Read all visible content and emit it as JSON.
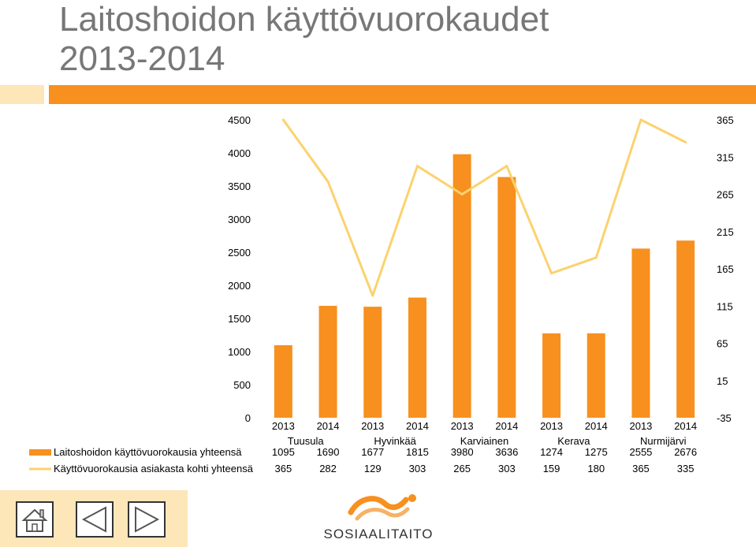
{
  "page": {
    "title_line1": "Laitoshoidon käyttövuorokaudet",
    "title_line2": "2013-2014",
    "accent_color": "#f7901e",
    "accent_light": "#fde6b8",
    "line_color": "#fcd26e"
  },
  "chart_data": {
    "type": "bar",
    "title": "Laitoshoidon käyttövuorokaudet 2013-2014",
    "groups": [
      "Tuusula",
      "Hyvinkää",
      "Karviainen",
      "Kerava",
      "Nurmijärvi"
    ],
    "years": [
      "2013",
      "2014",
      "2013",
      "2014",
      "2013",
      "2014",
      "2013",
      "2014",
      "2013",
      "2014"
    ],
    "left_axis": {
      "ticks": [
        "0",
        "500",
        "1000",
        "1500",
        "2000",
        "2500",
        "3000",
        "3500",
        "4000",
        "4500"
      ],
      "range": [
        0,
        4500
      ]
    },
    "right_axis": {
      "ticks": [
        "-35",
        "15",
        "65",
        "115",
        "165",
        "215",
        "265",
        "315",
        "365"
      ],
      "range": [
        -35,
        365
      ]
    },
    "series": [
      {
        "name": "Laitoshoidon käyttövuorokausia yhteensä",
        "kind": "bar",
        "axis": "left",
        "color": "#f7901e",
        "values": [
          1095,
          1690,
          1677,
          1815,
          3980,
          3636,
          1274,
          1275,
          2555,
          2676
        ]
      },
      {
        "name": "Käyttövuorokausia asiakasta kohti yhteensä",
        "kind": "line",
        "axis": "right",
        "color": "#fcd26e",
        "values": [
          365,
          282,
          129,
          303,
          265,
          303,
          159,
          180,
          365,
          335
        ]
      }
    ]
  },
  "footer": {
    "logo_text": "SOSIAALITAITO",
    "buttons": [
      "home-icon",
      "arrow-left-icon",
      "arrow-right-icon"
    ]
  }
}
